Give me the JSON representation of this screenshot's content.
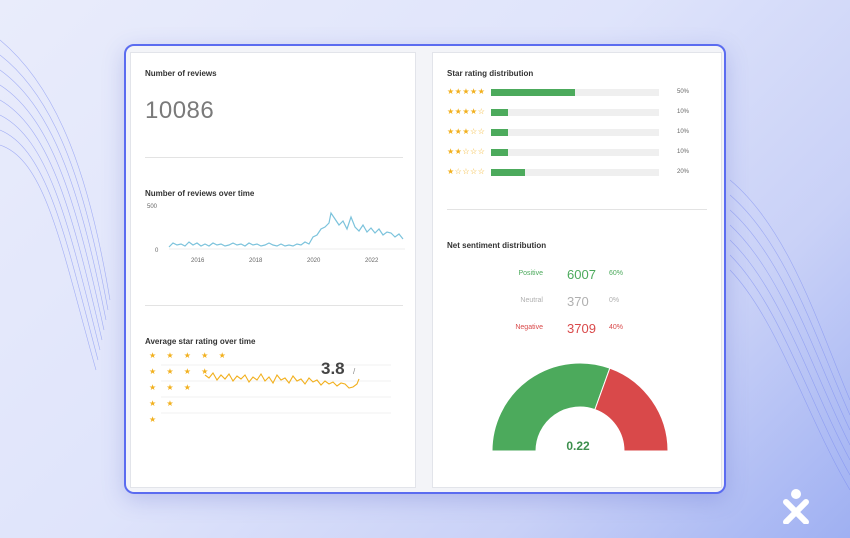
{
  "reviews": {
    "title": "Number of reviews",
    "count": "10086"
  },
  "reviews_over_time": {
    "title": "Number of reviews over time",
    "y_ticks": [
      "500",
      "0"
    ],
    "x_ticks": [
      "2016",
      "2018",
      "2020",
      "2022"
    ],
    "line_color": "#7cc3dc"
  },
  "avg_rating": {
    "title": "Average star rating over time",
    "star_rows": [
      "★ ★ ★ ★ ★",
      "★ ★ ★ ★",
      "★ ★ ★",
      "★ ★",
      "★"
    ],
    "value": "3.8",
    "suffix": "/",
    "line_color": "#f2b01e"
  },
  "star_distribution": {
    "title": "Star rating distribution",
    "rows": [
      {
        "stars": "★★★★★",
        "pct": "50%",
        "fraction": 0.5
      },
      {
        "stars": "★★★★☆",
        "pct": "10%",
        "fraction": 0.1
      },
      {
        "stars": "★★★☆☆",
        "pct": "10%",
        "fraction": 0.1
      },
      {
        "stars": "★★☆☆☆",
        "pct": "10%",
        "fraction": 0.1
      },
      {
        "stars": "★☆☆☆☆",
        "pct": "20%",
        "fraction": 0.2
      }
    ],
    "bar_color": "#4caa5c"
  },
  "sentiment": {
    "title": "Net sentiment distribution",
    "rows": [
      {
        "label": "Positive",
        "count": "6007",
        "pct": "60%",
        "color": "#4caa5c"
      },
      {
        "label": "Neutral",
        "count": "370",
        "pct": "0%",
        "color": "#b0b0b0"
      },
      {
        "label": "Negative",
        "count": "3709",
        "pct": "40%",
        "color": "#d9494a"
      }
    ],
    "gauge": {
      "value": "0.22",
      "positive_fraction": 0.61,
      "positive_color": "#4caa5c",
      "negative_color": "#d9494a"
    }
  },
  "logo": {
    "icon": "person-x-logo-icon",
    "color": "#ffffff"
  }
}
